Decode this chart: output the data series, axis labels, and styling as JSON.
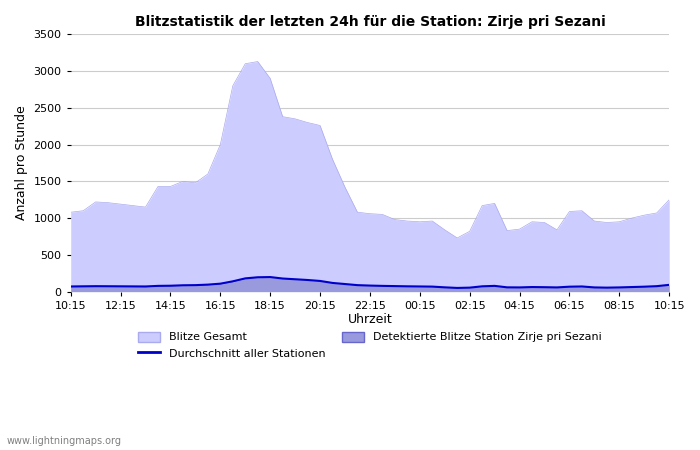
{
  "title": "Blitzstatistik der letzten 24h für die Station: Zirje pri Sezani",
  "ylabel": "Anzahl pro Stunde",
  "xlabel": "Uhrzeit",
  "watermark": "www.lightningmaps.org",
  "xtick_labels": [
    "10:15",
    "12:15",
    "14:15",
    "16:15",
    "18:15",
    "20:15",
    "22:15",
    "00:15",
    "02:15",
    "04:15",
    "06:15",
    "08:15",
    "10:15"
  ],
  "ylim": [
    0,
    3500
  ],
  "yticks": [
    0,
    500,
    1000,
    1500,
    2000,
    2500,
    3000,
    3500
  ],
  "color_gesamt_fill": "#ccccff",
  "color_gesamt_edge": "#aaaaee",
  "color_station_fill": "#9999dd",
  "color_station_edge": "#6666cc",
  "color_avg_line": "#0000cc",
  "bg_color": "#ffffff",
  "grid_color": "#cccccc",
  "x_values": [
    0,
    1,
    2,
    3,
    4,
    5,
    6,
    7,
    8,
    9,
    10,
    11,
    12,
    13,
    14,
    15,
    16,
    17,
    18,
    19,
    20,
    21,
    22,
    23,
    24,
    25,
    26,
    27,
    28,
    29,
    30,
    31,
    32,
    33,
    34,
    35,
    36,
    37,
    38,
    39,
    40,
    41,
    42,
    43,
    44,
    45,
    46,
    47,
    48
  ],
  "gesamt": [
    1080,
    1100,
    1220,
    1210,
    1190,
    1170,
    1150,
    1430,
    1430,
    1500,
    1480,
    1600,
    2000,
    2800,
    3100,
    3130,
    2900,
    2380,
    2350,
    2300,
    2260,
    1800,
    1420,
    1080,
    1060,
    1050,
    980,
    960,
    950,
    960,
    840,
    730,
    820,
    1170,
    1200,
    830,
    850,
    950,
    940,
    840,
    1090,
    1100,
    960,
    940,
    950,
    1000,
    1040,
    1070,
    1250
  ],
  "station": [
    60,
    62,
    63,
    65,
    63,
    62,
    60,
    72,
    73,
    80,
    82,
    88,
    100,
    130,
    175,
    190,
    195,
    175,
    165,
    155,
    140,
    115,
    100,
    85,
    80,
    75,
    72,
    70,
    68,
    65,
    55,
    48,
    52,
    70,
    75,
    55,
    55,
    60,
    58,
    55,
    65,
    68,
    55,
    52,
    55,
    60,
    65,
    72,
    90
  ],
  "avg_line": [
    70,
    72,
    74,
    73,
    72,
    71,
    70,
    78,
    80,
    86,
    88,
    95,
    108,
    140,
    180,
    195,
    198,
    178,
    168,
    158,
    145,
    118,
    103,
    88,
    82,
    78,
    75,
    72,
    70,
    68,
    58,
    50,
    54,
    72,
    78,
    58,
    57,
    62,
    60,
    57,
    67,
    70,
    57,
    54,
    57,
    62,
    67,
    74,
    92
  ]
}
